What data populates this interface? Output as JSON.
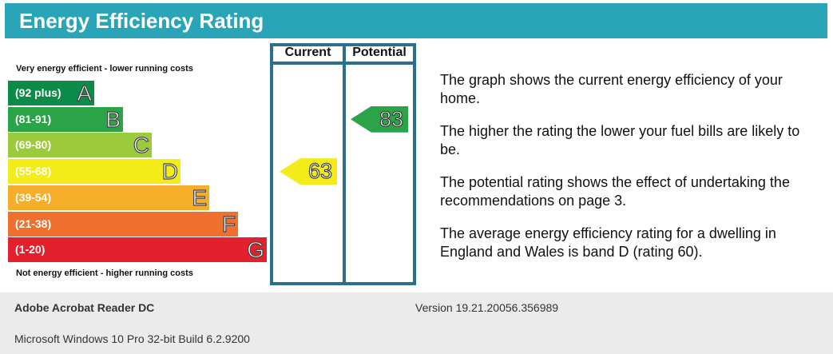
{
  "header": {
    "title": "Energy Efficiency Rating"
  },
  "chart": {
    "top_note": "Very energy efficient - lower running costs",
    "bottom_note": "Not energy efficient - higher running costs",
    "column_current": "Current",
    "column_potential": "Potential",
    "bands": [
      {
        "range": "(92 plus)",
        "letter": "A",
        "color": "#0c8a47"
      },
      {
        "range": "(81-91)",
        "letter": "B",
        "color": "#2aa447"
      },
      {
        "range": "(69-80)",
        "letter": "C",
        "color": "#9bcb3c"
      },
      {
        "range": "(55-68)",
        "letter": "D",
        "color": "#f3ec19"
      },
      {
        "range": "(39-54)",
        "letter": "E",
        "color": "#f6ae2a"
      },
      {
        "range": "(21-38)",
        "letter": "F",
        "color": "#ef6f2f"
      },
      {
        "range": "(1-20)",
        "letter": "G",
        "color": "#e3212e"
      }
    ],
    "current": {
      "rating": "63",
      "band": "D",
      "color": "#f3ec19"
    },
    "potential": {
      "rating": "83",
      "band": "B",
      "color": "#2aa447"
    }
  },
  "chart_data": {
    "type": "bar",
    "categories": [
      "A",
      "B",
      "C",
      "D",
      "E",
      "F",
      "G"
    ],
    "ranges": [
      "(92 plus)",
      "(81-91)",
      "(69-80)",
      "(55-68)",
      "(39-54)",
      "(21-38)",
      "(1-20)"
    ],
    "current": 63,
    "potential": 83,
    "title": "Energy Efficiency Rating"
  },
  "description": {
    "p1": "The graph shows the current energy efficiency of your home.",
    "p2": "The higher the rating the lower your fuel bills are likely to be.",
    "p3": "The potential rating shows the effect of undertaking the recommendations on page 3.",
    "p4": "The average energy efficiency rating for a dwelling in England and Wales is band D (rating 60)."
  },
  "footer": {
    "app": "Adobe Acrobat Reader DC",
    "version": "Version 19.21.20056.356989",
    "os": "Microsoft Windows 10 Pro 32-bit Build 6.2.9200"
  }
}
